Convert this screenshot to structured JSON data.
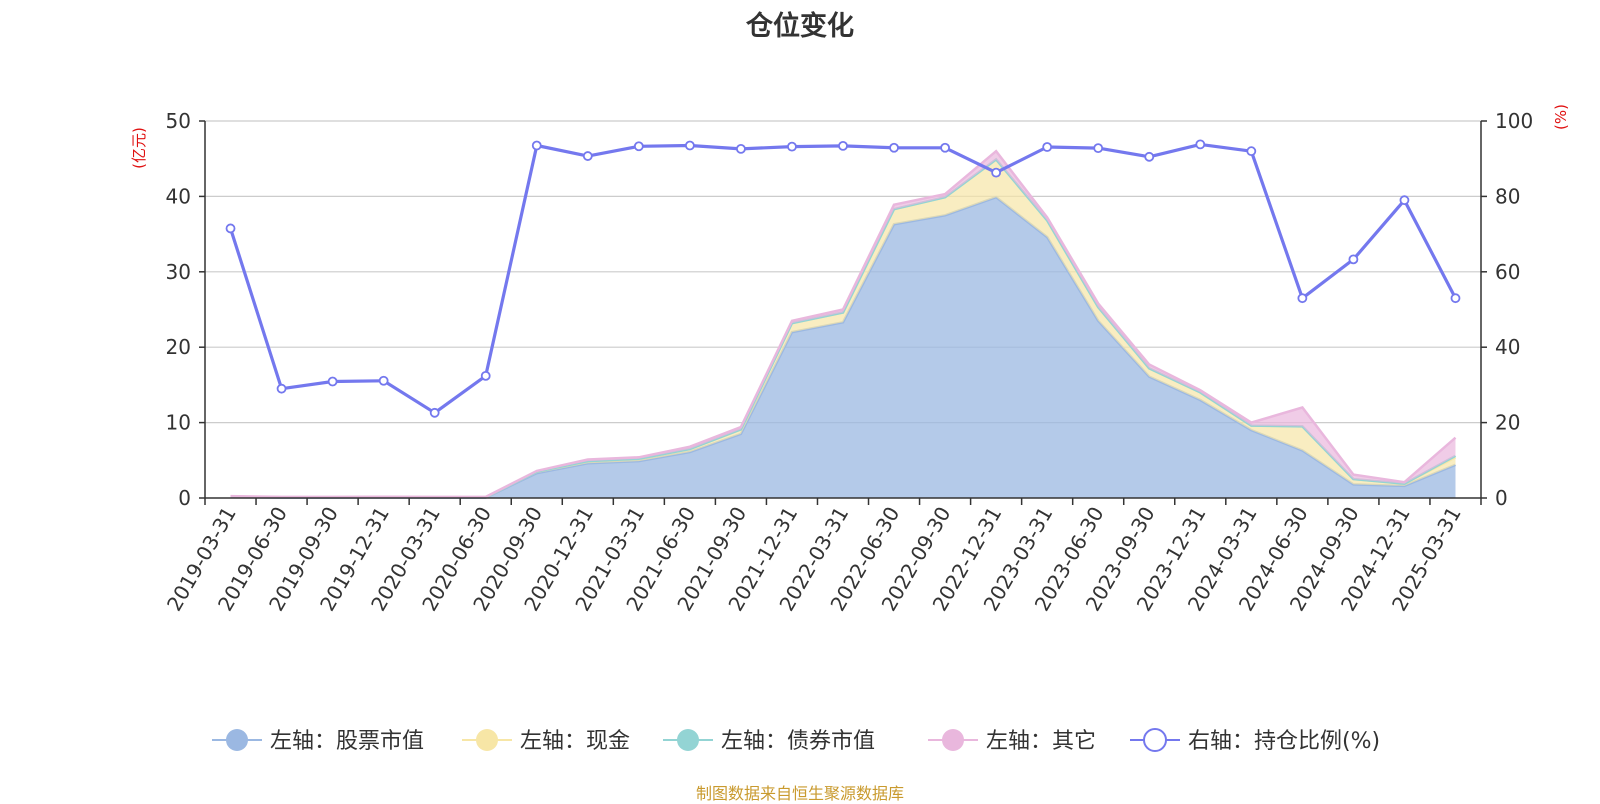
{
  "chart_data": {
    "type": "area",
    "title": "仓位变化",
    "source": "制图数据来自恒生聚源数据库",
    "y_left": {
      "label": "(亿元)",
      "range": [
        0,
        50
      ],
      "ticks": [
        0,
        10,
        20,
        30,
        40,
        50
      ]
    },
    "y_right": {
      "label": "(%)",
      "range": [
        0,
        100
      ],
      "ticks": [
        0,
        20,
        40,
        60,
        80,
        100
      ]
    },
    "grid": true,
    "legend_position": "bottom",
    "x": [
      "2019-03-31",
      "2019-06-30",
      "2019-09-30",
      "2019-12-31",
      "2020-03-31",
      "2020-06-30",
      "2020-09-30",
      "2020-12-31",
      "2021-03-31",
      "2021-06-30",
      "2021-09-30",
      "2021-12-31",
      "2022-03-31",
      "2022-06-30",
      "2022-09-30",
      "2022-12-31",
      "2023-03-31",
      "2023-06-30",
      "2023-09-30",
      "2023-12-31",
      "2024-03-31",
      "2024-06-30",
      "2024-09-30",
      "2024-12-31",
      "2025-03-31"
    ],
    "series": [
      {
        "name": "左轴：股票市值",
        "axis": "left",
        "stack": true,
        "color": "#9bb8e2",
        "values": [
          0.1,
          0.05,
          0.05,
          0.06,
          0.05,
          0.05,
          3.3,
          4.6,
          4.9,
          6.1,
          8.5,
          22.0,
          23.3,
          36.3,
          37.5,
          39.9,
          34.6,
          23.5,
          16.1,
          13.0,
          9.0,
          6.3,
          1.8,
          1.6,
          4.4
        ]
      },
      {
        "name": "左轴：现金",
        "axis": "left",
        "stack": true,
        "color": "#f7e6a6",
        "values": [
          0.1,
          0.05,
          0.05,
          0.06,
          0.05,
          0.05,
          0.2,
          0.3,
          0.3,
          0.4,
          0.6,
          1.2,
          1.3,
          2.0,
          2.4,
          5.0,
          2.2,
          1.8,
          1.1,
          1.0,
          0.6,
          3.2,
          0.7,
          0.3,
          1.0
        ]
      },
      {
        "name": "左轴：债券市值",
        "axis": "left",
        "stack": true,
        "color": "#93d4d4",
        "values": [
          0,
          0,
          0,
          0,
          0,
          0,
          0,
          0,
          0,
          0,
          0,
          0,
          0,
          0,
          0,
          0,
          0,
          0,
          0,
          0,
          0,
          0,
          0,
          0,
          0.2
        ]
      },
      {
        "name": "左轴：其它",
        "axis": "left",
        "stack": true,
        "color": "#e9b7dd",
        "values": [
          0.05,
          0.05,
          0.05,
          0.05,
          0.05,
          0.05,
          0.1,
          0.2,
          0.2,
          0.3,
          0.3,
          0.3,
          0.4,
          0.6,
          0.4,
          1.1,
          0.4,
          0.5,
          0.5,
          0.3,
          0.4,
          2.5,
          0.6,
          0.2,
          2.4
        ]
      },
      {
        "name": "右轴：持仓比例(%)",
        "axis": "right",
        "color": "#7478ee",
        "values": [
          71.5,
          29.0,
          30.9,
          31.1,
          22.6,
          32.4,
          93.5,
          90.7,
          93.3,
          93.5,
          92.6,
          93.2,
          93.4,
          92.9,
          92.9,
          86.3,
          93.1,
          92.8,
          90.5,
          93.8,
          92.0,
          53.0,
          63.3,
          79.0,
          53.0
        ]
      }
    ]
  }
}
